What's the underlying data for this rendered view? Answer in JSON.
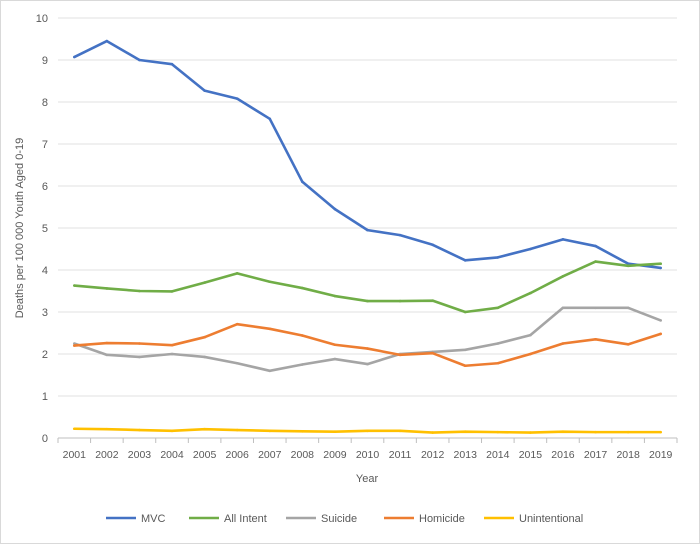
{
  "chart_data": {
    "type": "line",
    "title": "",
    "xlabel": "Year",
    "ylabel": "Deaths per 100 000 Youth Aged 0-19",
    "ylim": [
      0,
      10
    ],
    "yticks": [
      0,
      1,
      2,
      3,
      4,
      5,
      6,
      7,
      8,
      9,
      10
    ],
    "grid": true,
    "legend": "bottom",
    "categories": [
      "2001",
      "2002",
      "2003",
      "2004",
      "2005",
      "2006",
      "2007",
      "2008",
      "2009",
      "2010",
      "2011",
      "2012",
      "2013",
      "2014",
      "2015",
      "2016",
      "2017",
      "2018",
      "2019"
    ],
    "series": [
      {
        "name": "MVC",
        "color": "#4472c4",
        "values": [
          9.07,
          9.45,
          9.0,
          8.9,
          8.27,
          8.08,
          7.6,
          6.1,
          5.45,
          4.95,
          4.83,
          4.6,
          4.23,
          4.3,
          4.5,
          4.73,
          4.57,
          4.15,
          4.05
        ]
      },
      {
        "name": "All Intent",
        "color": "#70ad47",
        "values": [
          3.63,
          3.56,
          3.5,
          3.49,
          3.7,
          3.92,
          3.72,
          3.57,
          3.38,
          3.26,
          3.26,
          3.27,
          3.0,
          3.1,
          3.45,
          3.85,
          4.2,
          4.1,
          4.15
        ]
      },
      {
        "name": "Suicide",
        "color": "#a5a5a5",
        "values": [
          2.25,
          1.98,
          1.93,
          2.0,
          1.93,
          1.78,
          1.6,
          1.75,
          1.88,
          1.76,
          2.0,
          2.05,
          2.1,
          2.25,
          2.45,
          3.1,
          3.1,
          3.1,
          2.8
        ]
      },
      {
        "name": "Homicide",
        "color": "#ed7d31",
        "values": [
          2.2,
          2.26,
          2.25,
          2.21,
          2.4,
          2.71,
          2.6,
          2.44,
          2.22,
          2.13,
          1.98,
          2.02,
          1.72,
          1.78,
          2.0,
          2.25,
          2.35,
          2.23,
          2.48
        ]
      },
      {
        "name": "Unintentional",
        "color": "#ffc000",
        "values": [
          0.22,
          0.21,
          0.19,
          0.17,
          0.21,
          0.19,
          0.17,
          0.16,
          0.15,
          0.17,
          0.17,
          0.13,
          0.15,
          0.14,
          0.13,
          0.15,
          0.14,
          0.14,
          0.14
        ]
      }
    ]
  }
}
